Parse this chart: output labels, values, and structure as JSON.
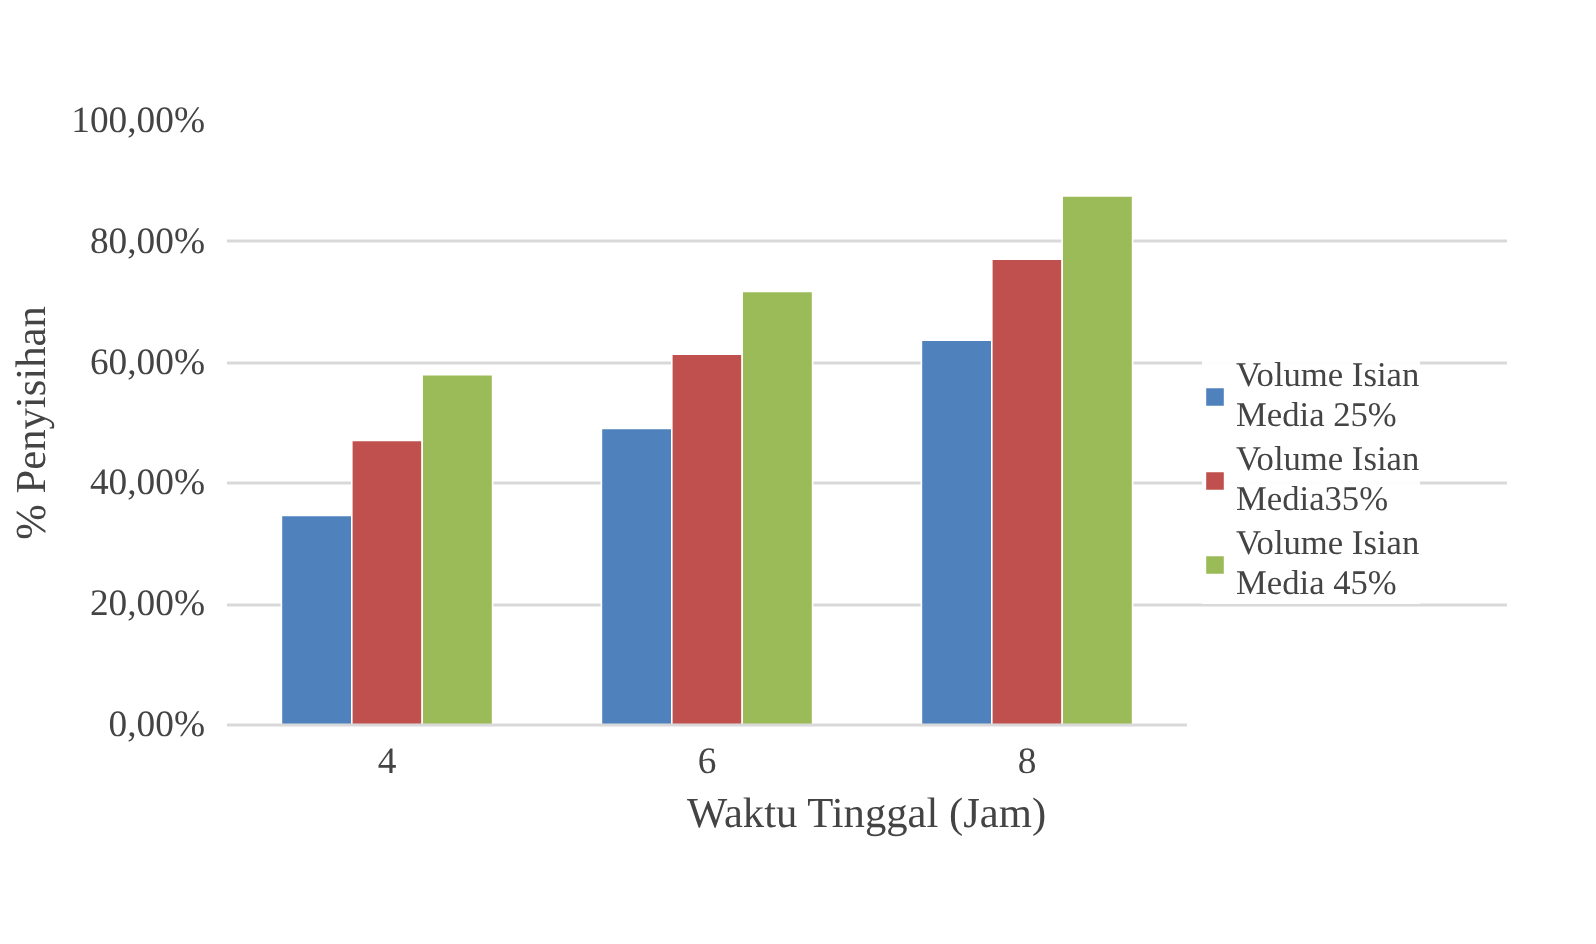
{
  "chart_data": {
    "type": "bar",
    "xlabel": "Waktu Tinggal (Jam)",
    "ylabel": "% Penyisihan",
    "categories": [
      "4",
      "6",
      "8"
    ],
    "series": [
      {
        "name": "Volume Isian Media 25%",
        "color": "#4f81bd",
        "values": [
          34.7,
          49.1,
          63.7
        ]
      },
      {
        "name": "Volume Isian Media35%",
        "color": "#c0504d",
        "values": [
          47.1,
          61.4,
          77.1
        ]
      },
      {
        "name": "Volume Isian Media 45%",
        "color": "#9bbb59",
        "values": [
          58.0,
          71.8,
          87.6
        ]
      }
    ],
    "ylim": [
      0,
      100
    ],
    "yticks": [
      {
        "value": 0,
        "label": "0,00%"
      },
      {
        "value": 20,
        "label": "20,00%"
      },
      {
        "value": 40,
        "label": "40,00%"
      },
      {
        "value": 60,
        "label": "60,00%"
      },
      {
        "value": 80,
        "label": "80,00%"
      },
      {
        "value": 100,
        "label": "100,00%"
      }
    ],
    "grid": "y",
    "legend": "right"
  }
}
